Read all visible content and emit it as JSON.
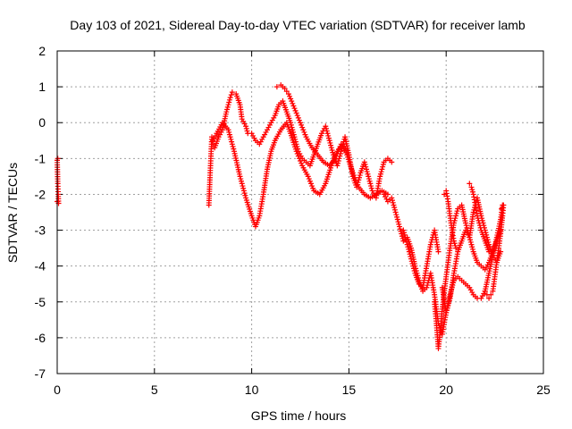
{
  "chart_data": {
    "type": "scatter",
    "title": "Day 103 of 2021, Sidereal Day-to-day VTEC variation (SDTVAR) for receiver lamb",
    "xlabel": "GPS time / hours",
    "ylabel": "SDTVAR / TECUs",
    "xlim": [
      0,
      25
    ],
    "ylim": [
      -7,
      2
    ],
    "xticks": [
      "0",
      "5",
      "10",
      "15",
      "20",
      "25"
    ],
    "yticks": [
      "2",
      "1",
      "0",
      "-1",
      "-2",
      "-3",
      "-4",
      "-5",
      "-6",
      "-7"
    ],
    "grid": true,
    "marker": "plus",
    "color": "#ff0000",
    "series": [
      {
        "x": [
          0.0,
          0.03,
          0.05,
          0.07,
          0.0,
          0.03
        ],
        "y": [
          -1.05,
          -1.7,
          -2.0,
          -2.25,
          -2.2,
          -1.0
        ]
      },
      {
        "x": [
          7.8,
          7.85,
          7.9,
          7.95,
          8.0,
          8.1,
          8.3,
          8.5,
          8.7,
          8.9,
          9.0,
          9.2,
          9.4,
          9.5,
          9.7,
          9.8,
          10.0,
          10.2,
          10.4,
          10.6,
          10.8,
          11.0,
          11.2,
          11.4,
          11.6,
          11.8,
          12.0,
          12.2,
          12.4,
          12.6,
          12.8,
          13.0,
          13.2,
          13.4,
          13.6,
          13.8,
          14.0,
          14.2,
          14.4,
          14.6,
          14.8,
          15.0,
          15.2,
          15.4,
          15.6,
          15.8,
          16.0,
          16.2,
          16.4,
          16.6,
          16.8,
          17.0,
          17.2
        ],
        "y": [
          -2.3,
          -1.6,
          -1.0,
          -0.4,
          -0.6,
          -0.7,
          -0.4,
          -0.2,
          0.3,
          0.7,
          0.85,
          0.8,
          0.5,
          0.1,
          -0.1,
          -0.3,
          -0.3,
          -0.5,
          -0.6,
          -0.4,
          -0.2,
          0.0,
          0.2,
          0.5,
          0.6,
          0.3,
          0.0,
          -0.4,
          -0.8,
          -1.0,
          -1.1,
          -1.2,
          -0.9,
          -0.6,
          -0.3,
          -0.1,
          -0.5,
          -0.9,
          -1.2,
          -0.8,
          -0.4,
          -0.9,
          -1.5,
          -1.8,
          -1.4,
          -1.1,
          -1.5,
          -1.9,
          -2.1,
          -1.5,
          -1.1,
          -1.0,
          -1.1
        ]
      },
      {
        "x": [
          8.0,
          8.2,
          8.5,
          8.8,
          9.1,
          9.4,
          9.7,
          10.0,
          10.2,
          10.4,
          10.6,
          10.8,
          11.0,
          11.2,
          11.5,
          11.8,
          12.0,
          12.3,
          12.6,
          12.9,
          13.2,
          13.5,
          13.8,
          14.1,
          14.4,
          14.7,
          15.0
        ],
        "y": [
          -0.5,
          -0.3,
          0.0,
          -0.2,
          -0.8,
          -1.5,
          -2.1,
          -2.6,
          -2.9,
          -2.6,
          -2.0,
          -1.3,
          -0.8,
          -0.5,
          -0.2,
          0.0,
          -0.3,
          -0.8,
          -1.2,
          -1.5,
          -1.9,
          -2.0,
          -1.7,
          -1.2,
          -0.8,
          -0.6,
          -0.9
        ]
      },
      {
        "x": [
          11.3,
          11.5,
          11.7,
          11.9,
          12.2,
          12.5,
          12.8,
          13.1,
          13.4,
          13.7,
          14.0,
          14.3,
          14.6,
          14.9,
          15.2,
          15.5,
          15.8,
          16.1,
          16.4,
          16.7,
          17.0
        ],
        "y": [
          1.0,
          1.05,
          0.95,
          0.8,
          0.4,
          0.0,
          -0.4,
          -0.7,
          -0.9,
          -1.1,
          -1.2,
          -1.0,
          -0.6,
          -0.9,
          -1.4,
          -1.8,
          -2.0,
          -2.1,
          -2.0,
          -1.9,
          -2.0
        ]
      },
      {
        "x": [
          16.8,
          17.0,
          17.2,
          17.4,
          17.6,
          17.8,
          18.0,
          18.2,
          18.4,
          18.6,
          18.8,
          19.0,
          19.2,
          19.4,
          19.6,
          19.8,
          20.0,
          20.2,
          20.4,
          20.6,
          20.8,
          21.0,
          21.2,
          21.4,
          21.6,
          21.8,
          22.0,
          22.2,
          22.4,
          22.6,
          22.8,
          22.9
        ],
        "y": [
          -2.0,
          -2.2,
          -2.1,
          -2.5,
          -2.9,
          -3.3,
          -3.2,
          -3.5,
          -4.0,
          -4.4,
          -4.7,
          -4.6,
          -4.2,
          -4.8,
          -5.6,
          -5.9,
          -5.3,
          -4.8,
          -4.4,
          -4.3,
          -4.4,
          -4.5,
          -4.6,
          -4.8,
          -4.9,
          -4.9,
          -4.7,
          -4.2,
          -3.7,
          -3.2,
          -2.7,
          -2.3
        ]
      },
      {
        "x": [
          17.8,
          18.0,
          18.2,
          18.4,
          18.6,
          18.8,
          19.0,
          19.2,
          19.4,
          19.6,
          19.8,
          20.0,
          20.2,
          20.4,
          20.6,
          20.8,
          21.0,
          21.2,
          21.4,
          21.6,
          21.8,
          22.0,
          22.2,
          22.4,
          22.6,
          22.8
        ],
        "y": [
          -3.0,
          -3.4,
          -3.8,
          -4.2,
          -4.5,
          -4.6,
          -4.0,
          -3.4,
          -3.0,
          -3.6,
          -4.6,
          -5.3,
          -4.9,
          -4.2,
          -3.6,
          -3.3,
          -3.0,
          -3.2,
          -3.6,
          -3.9,
          -4.0,
          -4.1,
          -3.9,
          -3.6,
          -3.3,
          -3.0
        ]
      },
      {
        "x": [
          19.4,
          19.5,
          19.6,
          19.7,
          19.8,
          20.0,
          20.2,
          20.4,
          20.6,
          20.8,
          21.0,
          21.2,
          21.4,
          21.6,
          21.8,
          22.0,
          22.2,
          22.4,
          22.6,
          22.8
        ],
        "y": [
          -5.0,
          -5.6,
          -6.3,
          -5.8,
          -5.2,
          -4.3,
          -3.5,
          -2.8,
          -2.4,
          -2.3,
          -2.8,
          -3.2,
          -2.5,
          -2.1,
          -2.6,
          -3.0,
          -3.4,
          -3.7,
          -3.9,
          -3.6
        ]
      },
      {
        "x": [
          19.9,
          20.0,
          20.1,
          20.2,
          20.3,
          20.4,
          20.5,
          21.2,
          21.3,
          21.4,
          21.5,
          21.6,
          21.8,
          22.0,
          22.2
        ],
        "y": [
          -2.0,
          -1.9,
          -2.2,
          -2.6,
          -3.0,
          -3.3,
          -3.5,
          -1.7,
          -1.8,
          -2.0,
          -2.3,
          -2.6,
          -3.0,
          -3.3,
          -3.6
        ]
      },
      {
        "x": [
          22.0,
          22.1,
          22.2,
          22.3,
          22.4,
          22.6,
          22.7,
          22.8,
          22.9,
          22.95,
          22.85
        ],
        "y": [
          -4.7,
          -4.8,
          -4.9,
          -4.8,
          -4.7,
          -3.9,
          -3.5,
          -3.1,
          -2.6,
          -2.3,
          -2.4
        ]
      }
    ]
  }
}
